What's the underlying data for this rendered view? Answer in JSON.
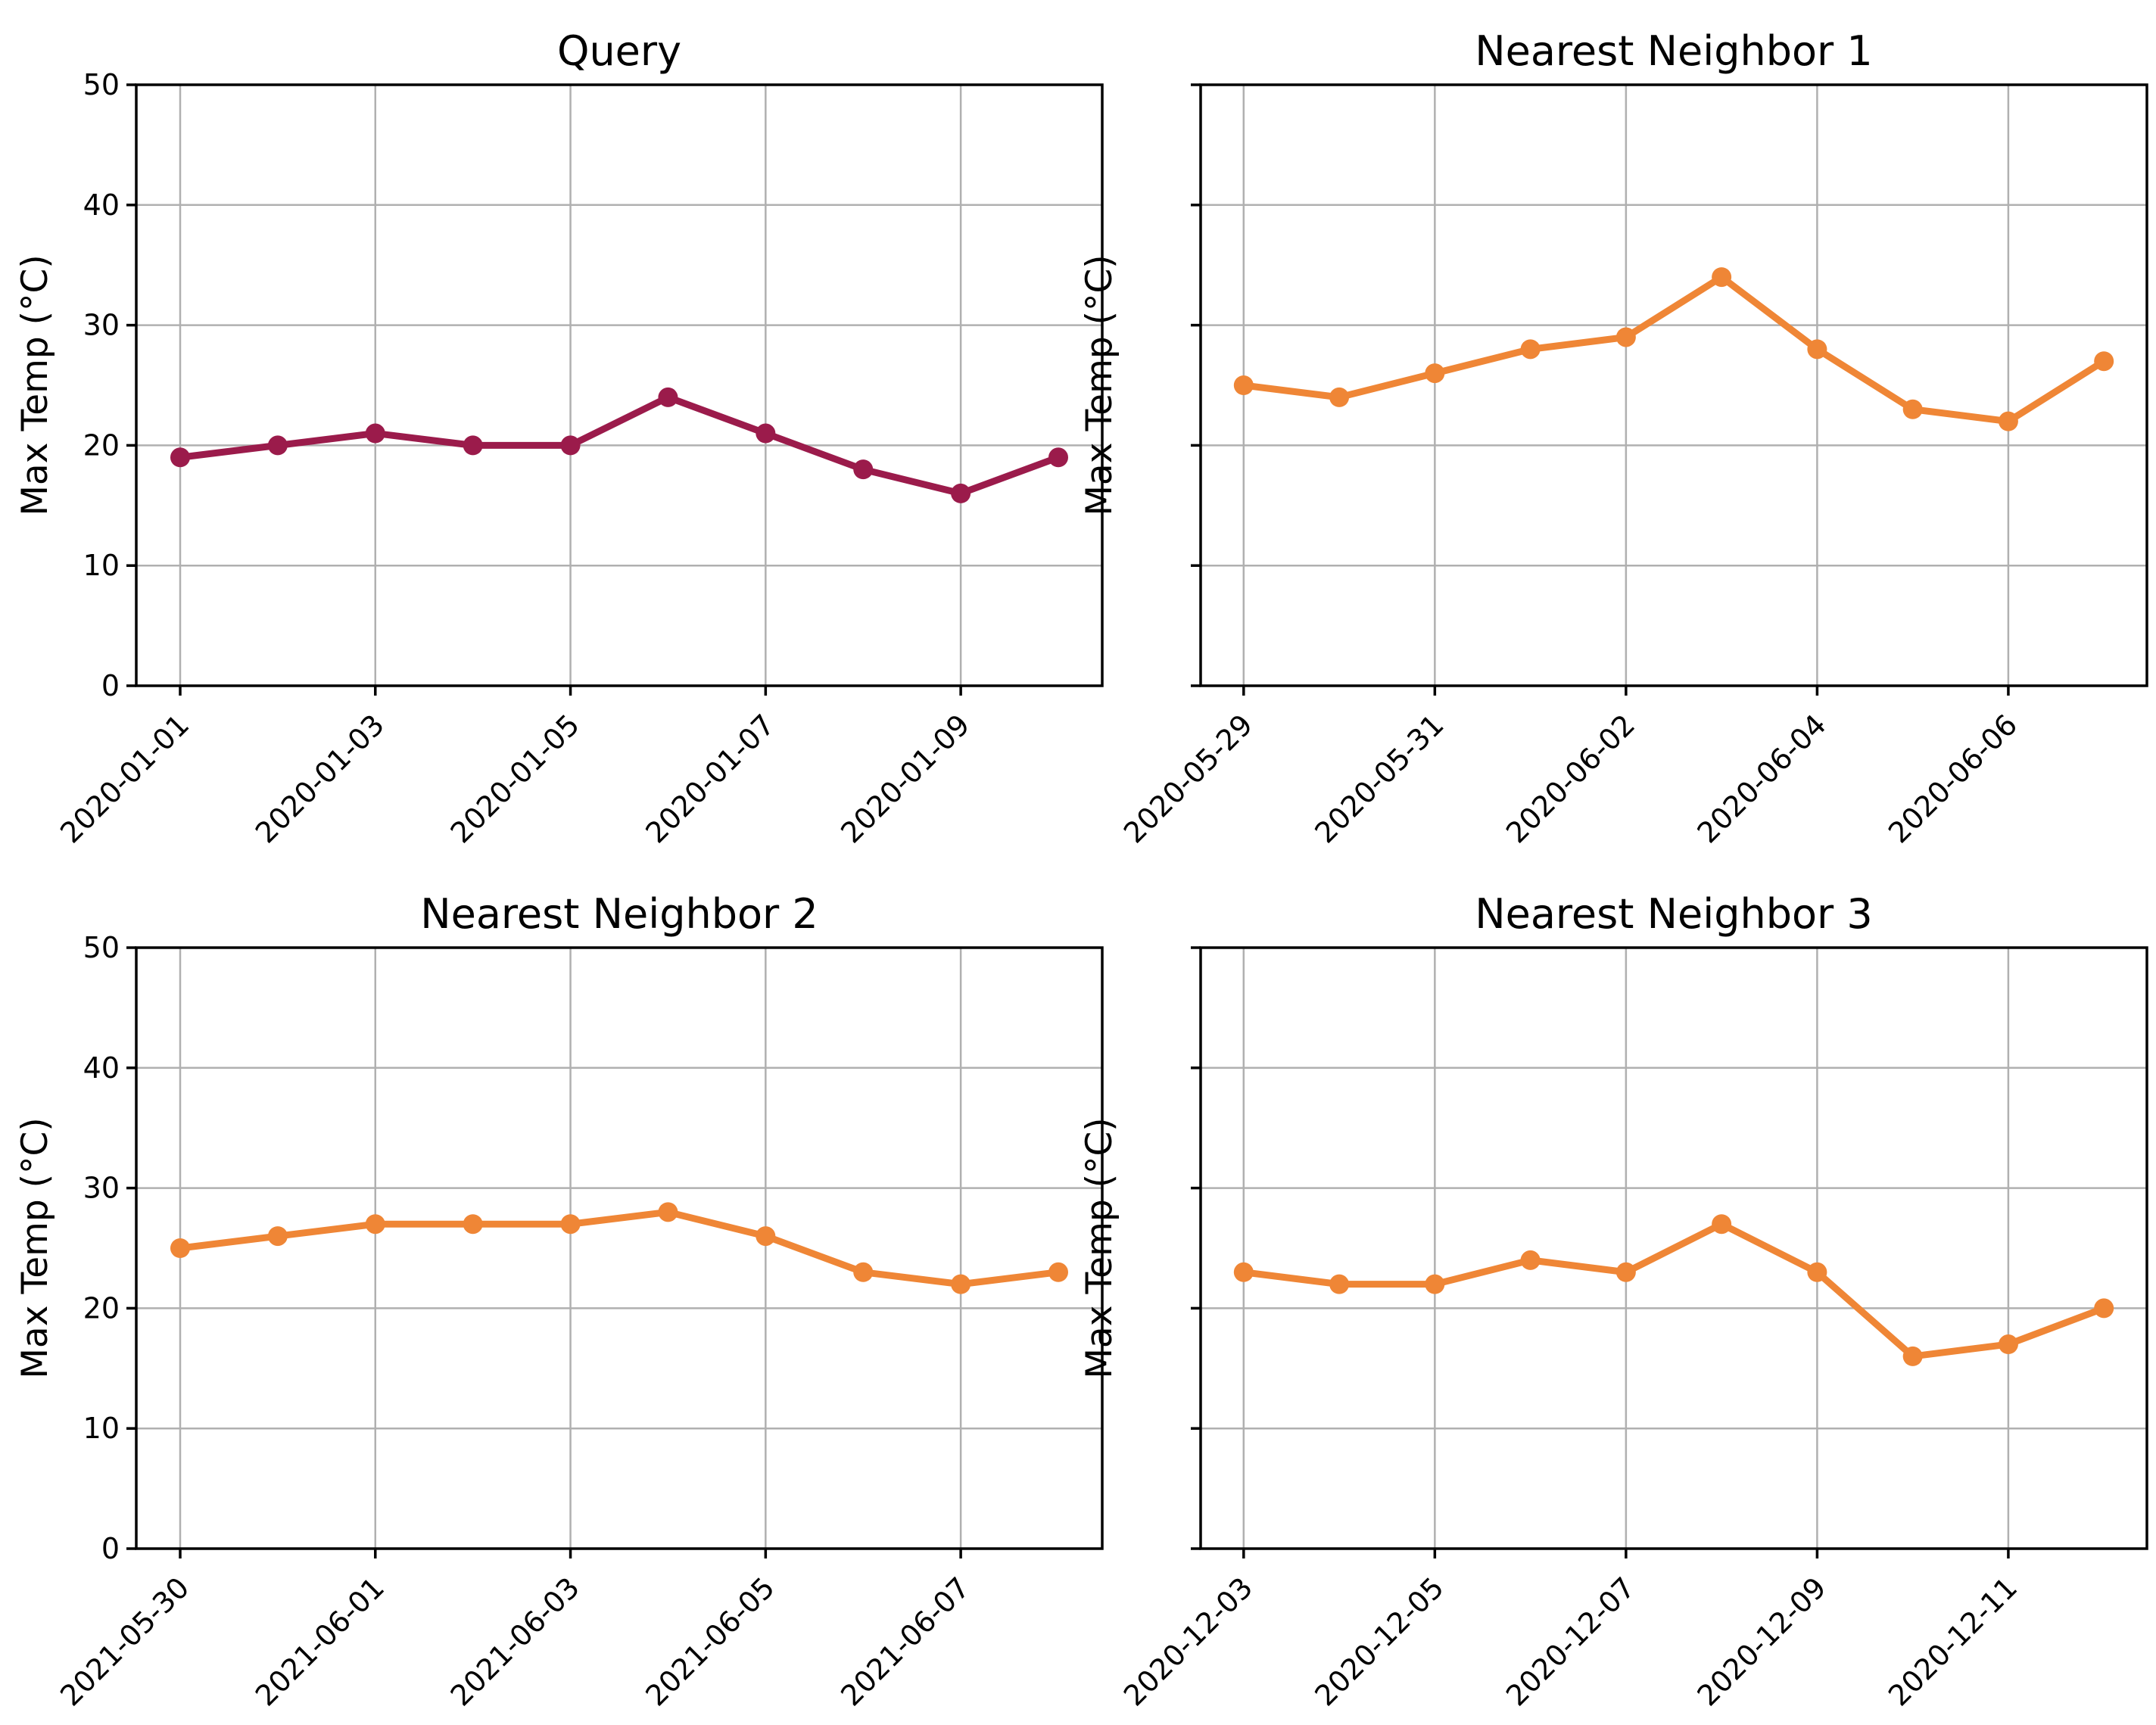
{
  "figure": {
    "background": "#ffffff",
    "grid_color": "#b0b0b0",
    "axis_color": "#000000",
    "text_color": "#000000",
    "query_color": "#9b1b4b",
    "neighbor_color": "#ef8636"
  },
  "chart_data": [
    {
      "type": "line",
      "title": "Query",
      "ylabel": "Max Temp (°C)",
      "line_color": "#9b1b4b",
      "x": [
        "2020-01-01",
        "2020-01-02",
        "2020-01-03",
        "2020-01-04",
        "2020-01-05",
        "2020-01-06",
        "2020-01-07",
        "2020-01-08",
        "2020-01-09",
        "2020-01-10"
      ],
      "values": [
        19,
        20,
        21,
        20,
        20,
        24,
        21,
        18,
        16,
        19
      ],
      "xtick_indices": [
        0,
        2,
        4,
        6,
        8
      ],
      "xtick_labels": [
        "2020-01-01",
        "2020-01-03",
        "2020-01-05",
        "2020-01-07",
        "2020-01-09"
      ],
      "ylim": [
        0,
        50
      ],
      "yticks": [
        0,
        10,
        20,
        30,
        40,
        50
      ],
      "show_ytick_labels": true,
      "grid": true,
      "legend": "none"
    },
    {
      "type": "line",
      "title": "Nearest Neighbor 1",
      "ylabel": "Max Temp (°C)",
      "line_color": "#ef8636",
      "x": [
        "2020-05-29",
        "2020-05-30",
        "2020-05-31",
        "2020-06-01",
        "2020-06-02",
        "2020-06-03",
        "2020-06-04",
        "2020-06-05",
        "2020-06-06",
        "2020-06-07"
      ],
      "values": [
        25,
        24,
        26,
        28,
        29,
        34,
        28,
        23,
        22,
        27
      ],
      "xtick_indices": [
        0,
        2,
        4,
        6,
        8
      ],
      "xtick_labels": [
        "2020-05-29",
        "2020-05-31",
        "2020-06-02",
        "2020-06-04",
        "2020-06-06"
      ],
      "ylim": [
        0,
        50
      ],
      "yticks": [
        0,
        10,
        20,
        30,
        40,
        50
      ],
      "show_ytick_labels": false,
      "grid": true,
      "legend": "none"
    },
    {
      "type": "line",
      "title": "Nearest Neighbor 2",
      "ylabel": "Max Temp (°C)",
      "line_color": "#ef8636",
      "x": [
        "2021-05-30",
        "2021-05-31",
        "2021-06-01",
        "2021-06-02",
        "2021-06-03",
        "2021-06-04",
        "2021-06-05",
        "2021-06-06",
        "2021-06-07",
        "2021-06-08"
      ],
      "values": [
        25,
        26,
        27,
        27,
        27,
        28,
        26,
        23,
        22,
        23
      ],
      "xtick_indices": [
        0,
        2,
        4,
        6,
        8
      ],
      "xtick_labels": [
        "2021-05-30",
        "2021-06-01",
        "2021-06-03",
        "2021-06-05",
        "2021-06-07"
      ],
      "ylim": [
        0,
        50
      ],
      "yticks": [
        0,
        10,
        20,
        30,
        40,
        50
      ],
      "show_ytick_labels": true,
      "grid": true,
      "legend": "none"
    },
    {
      "type": "line",
      "title": "Nearest Neighbor 3",
      "ylabel": "Max Temp (°C)",
      "line_color": "#ef8636",
      "x": [
        "2020-12-03",
        "2020-12-04",
        "2020-12-05",
        "2020-12-06",
        "2020-12-07",
        "2020-12-08",
        "2020-12-09",
        "2020-12-10",
        "2020-12-11",
        "2020-12-12"
      ],
      "values": [
        23,
        22,
        22,
        24,
        23,
        27,
        23,
        16,
        17,
        20
      ],
      "xtick_indices": [
        0,
        2,
        4,
        6,
        8
      ],
      "xtick_labels": [
        "2020-12-03",
        "2020-12-05",
        "2020-12-07",
        "2020-12-09",
        "2020-12-11"
      ],
      "ylim": [
        0,
        50
      ],
      "yticks": [
        0,
        10,
        20,
        30,
        40,
        50
      ],
      "show_ytick_labels": false,
      "grid": true,
      "legend": "none"
    }
  ]
}
